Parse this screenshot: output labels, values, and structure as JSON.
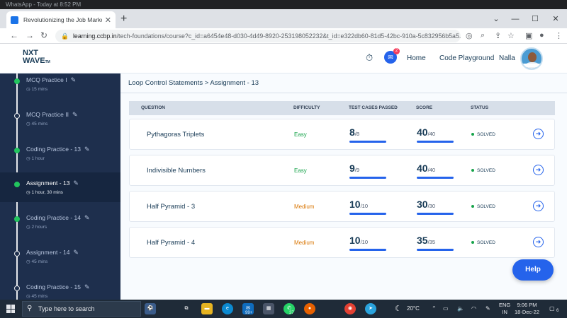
{
  "os_top": {
    "text": "WhatsApp - Today at 8:52 PM"
  },
  "browser": {
    "tab_title": "Revolutionizing the Job Market |",
    "url_host": "learning.ccbp.in",
    "url_path": "/tech-foundations/course?c_id=a6454e48-d030-4d49-8920-253198052232&t_id=e322db60-81d5-42bc-910a-5c832956b5a5..."
  },
  "app": {
    "logo_line1": "NXT",
    "logo_line2": "WAVE",
    "nav_home": "Home",
    "nav_playground": "Code Playground",
    "user_name": "Nalla",
    "chat_badge": "2"
  },
  "sidebar": {
    "items": [
      {
        "title": "MCQ Practice I",
        "time": "15 mins",
        "state": "done"
      },
      {
        "title": "MCQ Practice II",
        "time": "45 mins",
        "state": "pending"
      },
      {
        "title": "Coding Practice - 13",
        "time": "1 hour",
        "state": "done"
      },
      {
        "title": "Assignment - 13",
        "time": "1 hour, 30 mins",
        "state": "active"
      },
      {
        "title": "Coding Practice - 14",
        "time": "2 hours",
        "state": "done"
      },
      {
        "title": "Assignment - 14",
        "time": "45 mins",
        "state": "pending"
      },
      {
        "title": "Coding Practice - 15",
        "time": "45 mins",
        "state": "pending"
      }
    ]
  },
  "main": {
    "breadcrumb": "Loop Control Statements > Assignment - 13",
    "headers": {
      "question": "QUESTION",
      "difficulty": "DIFFICULTY",
      "tests": "TEST CASES PASSED",
      "score": "SCORE",
      "status": "STATUS"
    },
    "rows": [
      {
        "question": "Pythagoras Triplets",
        "difficulty": "Easy",
        "diff_color": "#16a34a",
        "passed": "8",
        "total": "/8",
        "score": "40",
        "max": "/40",
        "status": "SOLVED"
      },
      {
        "question": "Indivisible Numbers",
        "difficulty": "Easy",
        "diff_color": "#16a34a",
        "passed": "9",
        "total": "/9",
        "score": "40",
        "max": "/40",
        "status": "SOLVED"
      },
      {
        "question": "Half Pyramid - 3",
        "difficulty": "Medium",
        "diff_color": "#d97706",
        "passed": "10",
        "total": "/10",
        "score": "30",
        "max": "/30",
        "status": "SOLVED"
      },
      {
        "question": "Half Pyramid - 4",
        "difficulty": "Medium",
        "diff_color": "#d97706",
        "passed": "10",
        "total": "/10",
        "score": "35",
        "max": "/35",
        "status": "SOLVED"
      }
    ],
    "help_label": "Help"
  },
  "taskbar": {
    "search_placeholder": "Type here to search",
    "mail_badge": "99+",
    "whatsapp_badge": "37",
    "temperature": "20°C",
    "lang_line1": "ENG",
    "lang_line2": "IN",
    "time": "9:06 PM",
    "date": "18-Dec-22",
    "notif_count": "6"
  }
}
